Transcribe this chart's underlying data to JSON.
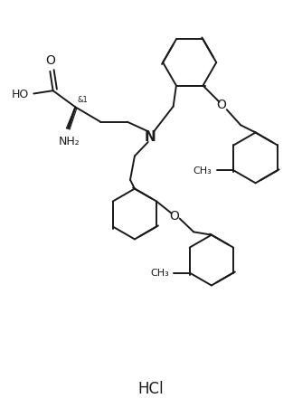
{
  "background_color": "#ffffff",
  "line_color": "#1a1a1a",
  "line_width": 1.4,
  "font_size": 9,
  "figsize": [
    3.34,
    4.52
  ],
  "dpi": 100,
  "hcl_label": "HCl",
  "xlim": [
    0,
    10
  ],
  "ylim": [
    0,
    13.5
  ]
}
